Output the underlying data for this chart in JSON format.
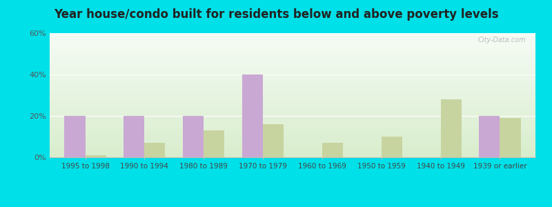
{
  "title": "Year house/condo built for residents below and above poverty levels",
  "categories": [
    "1995 to 1998",
    "1990 to 1994",
    "1980 to 1989",
    "1970 to 1979",
    "1960 to 1969",
    "1950 to 1959",
    "1940 to 1949",
    "1939 or earlier"
  ],
  "below_poverty": [
    20,
    20,
    20,
    40,
    0,
    0,
    0,
    20
  ],
  "above_poverty": [
    1,
    7,
    13,
    16,
    7,
    10,
    28,
    19
  ],
  "below_color": "#c9a8d4",
  "above_color": "#c8d4a0",
  "ylim": [
    0,
    60
  ],
  "yticks": [
    0,
    20,
    40,
    60
  ],
  "ytick_labels": [
    "0%",
    "20%",
    "40%",
    "60%"
  ],
  "outer_bg": "#00e0e8",
  "title_fontsize": 12,
  "bar_width": 0.35,
  "grad_top": "#f5fbf5",
  "grad_bottom": "#d8edcc"
}
